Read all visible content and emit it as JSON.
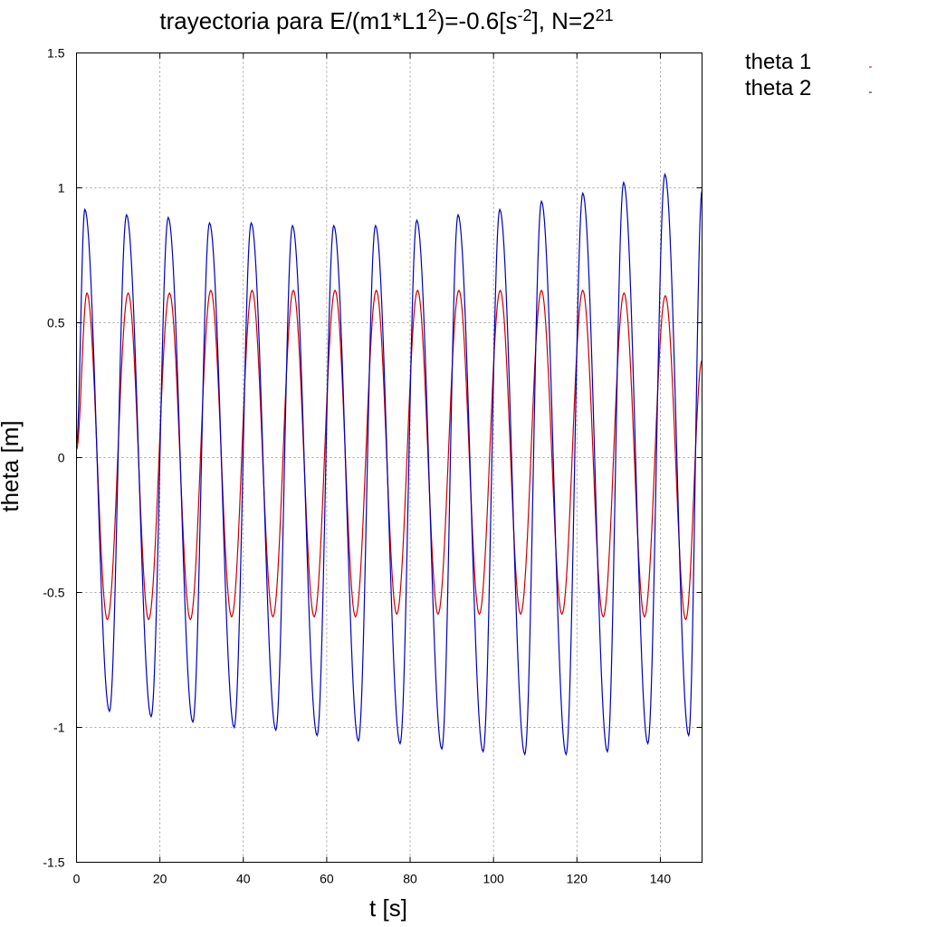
{
  "chart_data": {
    "type": "line",
    "title": {
      "base": "trayectoria para E/(m1*L1",
      "sup1": "2",
      "mid": ")=-0.6[s",
      "sup2": "-2",
      "mid2": "], N=2",
      "sup3": "21"
    },
    "xlabel": "t [s]",
    "ylabel": "theta [m]",
    "xlim": [
      0,
      150
    ],
    "ylim": [
      -1.5,
      1.5
    ],
    "xticks": [
      0,
      20,
      40,
      60,
      80,
      100,
      120,
      140
    ],
    "xtick_labels": [
      "0",
      "20",
      "40",
      "60",
      "80",
      "100",
      "120",
      "140"
    ],
    "yticks": [
      -1.5,
      -1,
      -0.5,
      0,
      0.5,
      1,
      1.5
    ],
    "ytick_labels": [
      "-1.5",
      "-1",
      "-0.5",
      "0",
      "0.5",
      "1",
      "1.5"
    ],
    "grid": true,
    "legend_position": "top-right outside",
    "series": [
      {
        "name": "theta 1",
        "color": "#cc0000",
        "points": [
          [
            0,
            0.03
          ],
          [
            2.5,
            0.61
          ],
          [
            7.4,
            -0.6
          ],
          [
            12.4,
            0.61
          ],
          [
            17.3,
            -0.6
          ],
          [
            22.3,
            0.61
          ],
          [
            27.3,
            -0.6
          ],
          [
            32.2,
            0.62
          ],
          [
            37.2,
            -0.59
          ],
          [
            42.1,
            0.62
          ],
          [
            47.1,
            -0.59
          ],
          [
            52,
            0.62
          ],
          [
            57,
            -0.59
          ],
          [
            62,
            0.62
          ],
          [
            66.9,
            -0.59
          ],
          [
            71.9,
            0.62
          ],
          [
            76.8,
            -0.58
          ],
          [
            81.8,
            0.62
          ],
          [
            86.7,
            -0.58
          ],
          [
            91.7,
            0.62
          ],
          [
            96.6,
            -0.58
          ],
          [
            101.6,
            0.62
          ],
          [
            106.5,
            -0.58
          ],
          [
            111.5,
            0.62
          ],
          [
            116.4,
            -0.58
          ],
          [
            121.4,
            0.62
          ],
          [
            126.3,
            -0.59
          ],
          [
            131.3,
            0.61
          ],
          [
            136.2,
            -0.59
          ],
          [
            141.2,
            0.6
          ],
          [
            146.1,
            -0.6
          ],
          [
            150,
            0.36
          ]
        ]
      },
      {
        "name": "theta 2",
        "color": "#0000bb",
        "points": [
          [
            0,
            0.05
          ],
          [
            2,
            0.92
          ],
          [
            7.9,
            -0.94
          ],
          [
            12,
            0.9
          ],
          [
            17.9,
            -0.96
          ],
          [
            22,
            0.89
          ],
          [
            27.9,
            -0.98
          ],
          [
            31.9,
            0.87
          ],
          [
            37.8,
            -1
          ],
          [
            41.9,
            0.87
          ],
          [
            47.8,
            -1.01
          ],
          [
            51.8,
            0.86
          ],
          [
            57.7,
            -1.03
          ],
          [
            61.7,
            0.86
          ],
          [
            67.6,
            -1.05
          ],
          [
            71.7,
            0.86
          ],
          [
            77.6,
            -1.06
          ],
          [
            81.6,
            0.88
          ],
          [
            87.6,
            -1.08
          ],
          [
            91.5,
            0.9
          ],
          [
            97.5,
            -1.09
          ],
          [
            101.5,
            0.92
          ],
          [
            107.5,
            -1.1
          ],
          [
            111.5,
            0.95
          ],
          [
            117.4,
            -1.1
          ],
          [
            121.4,
            0.98
          ],
          [
            127.3,
            -1.09
          ],
          [
            131.2,
            1.02
          ],
          [
            137,
            -1.06
          ],
          [
            141.1,
            1.05
          ],
          [
            146.8,
            -1.03
          ],
          [
            150,
            0.99
          ]
        ]
      }
    ]
  }
}
